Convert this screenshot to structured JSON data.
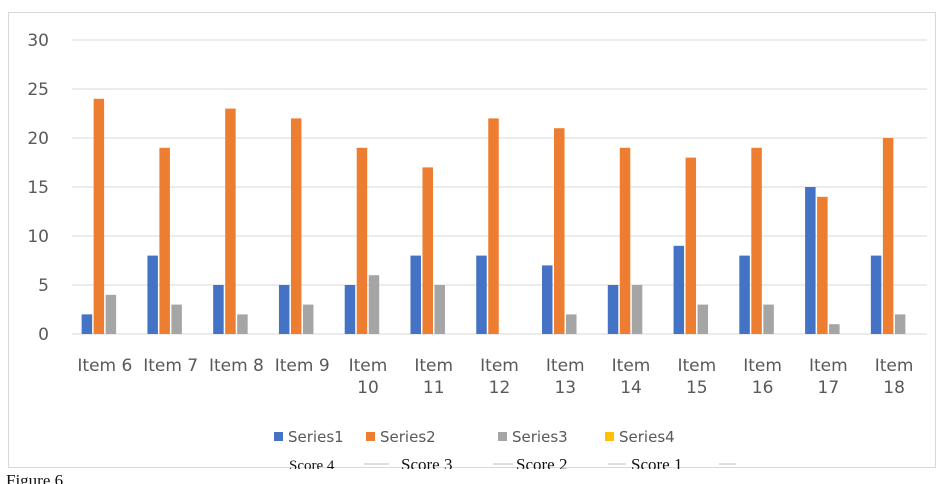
{
  "chart_data": {
    "type": "bar",
    "categories": [
      [
        "Item 6"
      ],
      [
        "Item 7"
      ],
      [
        "Item 8"
      ],
      [
        "Item 9"
      ],
      [
        "Item",
        "10"
      ],
      [
        "Item",
        "11"
      ],
      [
        "Item",
        "12"
      ],
      [
        "Item",
        "13"
      ],
      [
        "Item",
        "14"
      ],
      [
        "Item",
        "15"
      ],
      [
        "Item",
        "16"
      ],
      [
        "Item",
        "17"
      ],
      [
        "Item",
        "18"
      ]
    ],
    "series": [
      {
        "name": "Series1",
        "color": "#4472c4",
        "values": [
          2,
          8,
          5,
          5,
          5,
          8,
          8,
          7,
          5,
          9,
          8,
          15,
          8
        ]
      },
      {
        "name": "Series2",
        "color": "#ed7d31",
        "values": [
          24,
          19,
          23,
          22,
          19,
          17,
          22,
          21,
          19,
          18,
          19,
          14,
          20
        ]
      },
      {
        "name": "Series3",
        "color": "#a5a5a5",
        "values": [
          4,
          3,
          2,
          3,
          6,
          5,
          0,
          2,
          5,
          3,
          3,
          1,
          2
        ]
      },
      {
        "name": "Series4",
        "color": "#ffc000",
        "values": [
          0,
          0,
          0,
          0,
          0,
          0,
          0,
          0,
          0,
          0,
          0,
          0,
          0
        ]
      }
    ],
    "ylim": [
      0,
      30
    ],
    "yticks": [
      0,
      5,
      10,
      15,
      20,
      25,
      30
    ],
    "grid": true,
    "legend_position": "bottom"
  },
  "score_labels": [
    "Score 4",
    "Score 3",
    "Score 2",
    "Score 1"
  ],
  "caption": "Figure 6"
}
